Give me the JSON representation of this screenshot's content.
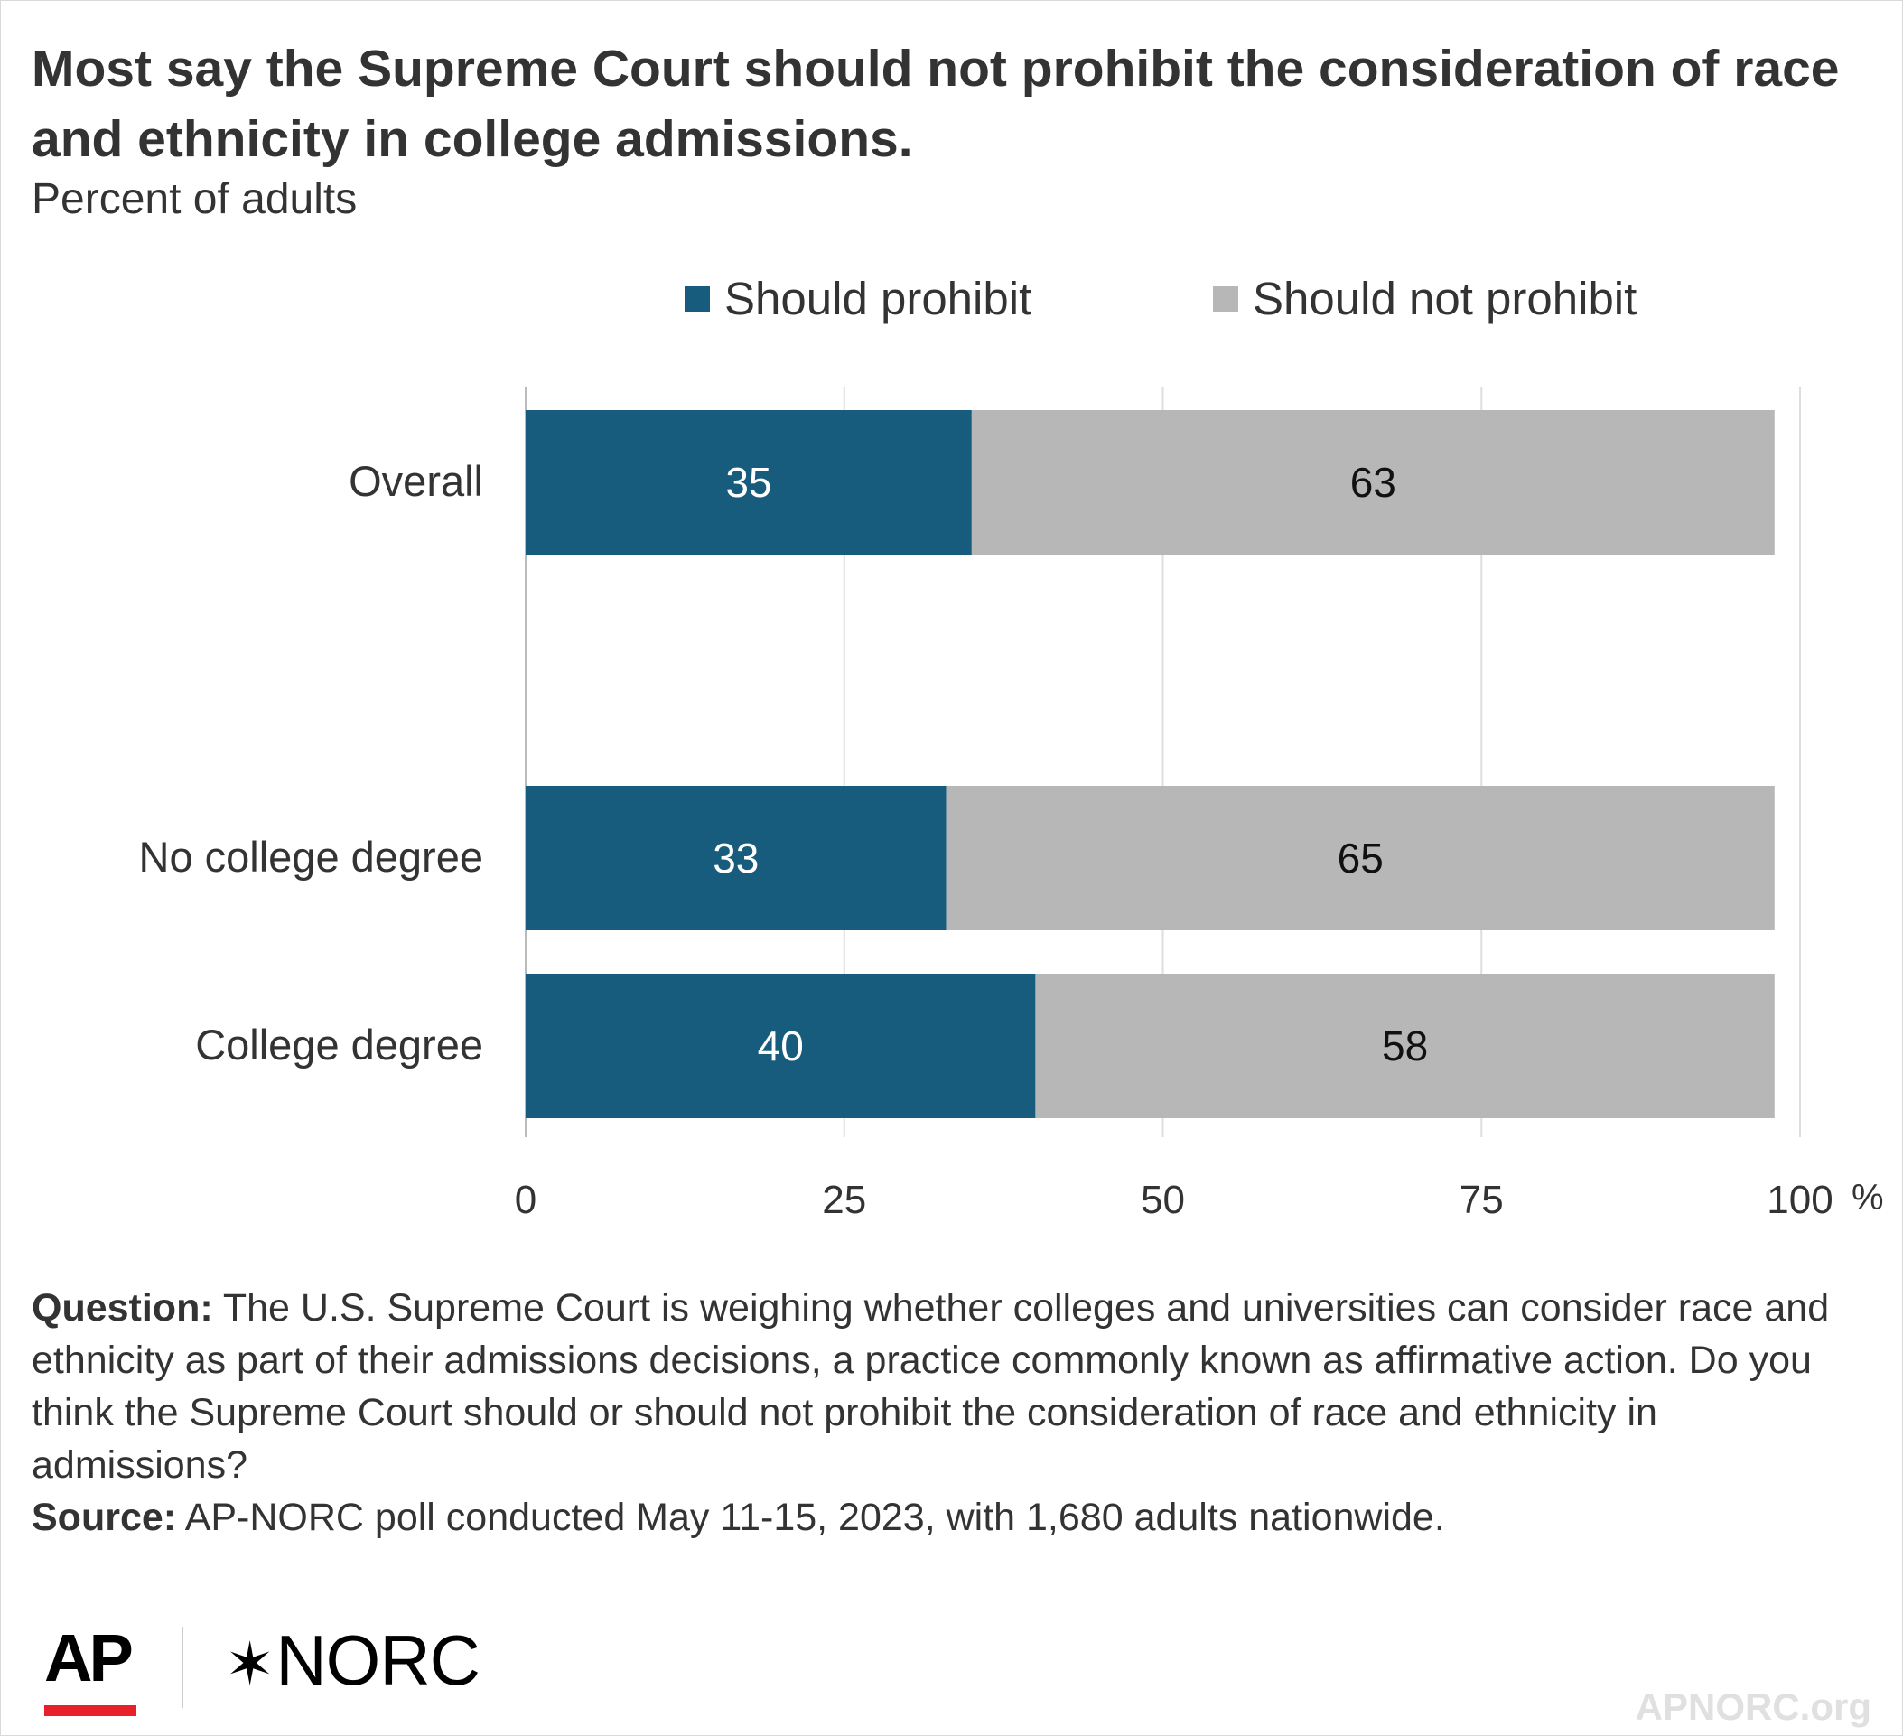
{
  "header": {
    "title": "Most say the Supreme Court should not prohibit the consideration of race and ethnicity in college admissions.",
    "subtitle": "Percent of adults"
  },
  "legend": [
    {
      "label": "Should prohibit",
      "color": "#175c7d"
    },
    {
      "label": "Should not prohibit",
      "color": "#b7b7b7"
    }
  ],
  "chart_data": {
    "type": "bar",
    "orientation": "horizontal",
    "stacked": true,
    "categories": [
      "Overall",
      "No college degree",
      "College degree"
    ],
    "series": [
      {
        "name": "Should prohibit",
        "values": [
          35,
          33,
          40
        ],
        "color": "#175c7d"
      },
      {
        "name": "Should not prohibit",
        "values": [
          63,
          65,
          58
        ],
        "color": "#b7b7b7"
      }
    ],
    "xlim": [
      0,
      100
    ],
    "xticks": [
      "0",
      "25",
      "50",
      "75",
      "100"
    ],
    "xunit": "%",
    "grid": true,
    "legend_position": "top"
  },
  "notes": {
    "question_label": "Question:",
    "question_text": "The U.S. Supreme Court is weighing whether colleges and universities can consider race and ethnicity as part of their admissions decisions, a practice commonly known as affirmative action. Do you think the Supreme Court should or should not prohibit the consideration of race and ethnicity in admissions?",
    "source_label": "Source:",
    "source_text": "AP-NORC poll conducted May 11-15, 2023, with 1,680 adults nationwide."
  },
  "footer": {
    "ap_logo": "AP",
    "norc_logo": "NORC",
    "site": "APNORC.org"
  }
}
